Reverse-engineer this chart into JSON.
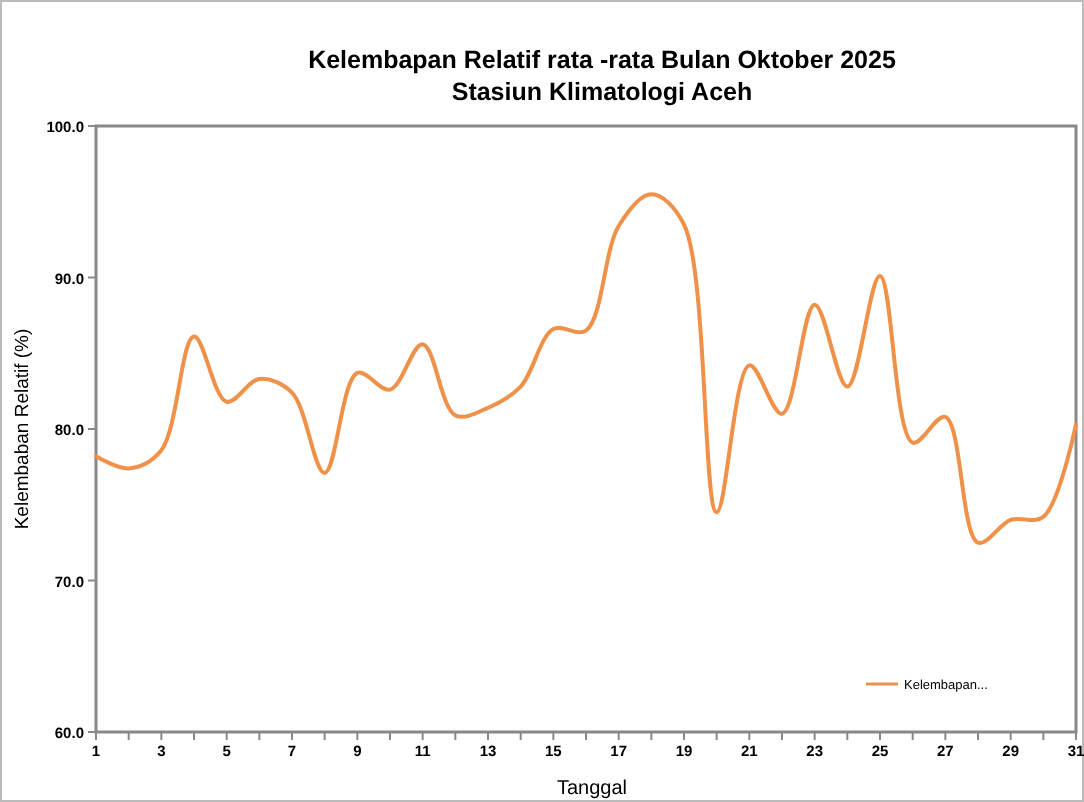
{
  "chart_data": {
    "type": "line",
    "title": "Kelembapan Relatif rata -rata Bulan Oktober 2025",
    "subtitle": "Stasiun Klimatologi Aceh",
    "xlabel": "Tanggal",
    "ylabel": "Kelembaban Relatif (%)",
    "x": [
      1,
      2,
      3,
      4,
      5,
      6,
      7,
      8,
      9,
      10,
      11,
      12,
      13,
      14,
      15,
      16,
      17,
      18,
      19,
      20,
      21,
      22,
      23,
      24,
      25,
      26,
      27,
      28,
      29,
      30,
      31
    ],
    "series": [
      {
        "name": "Kelembapan...",
        "color": "#f0914a",
        "values": [
          78.2,
          77.4,
          78.6,
          86.1,
          81.8,
          83.3,
          82.4,
          77.1,
          83.7,
          82.6,
          85.6,
          80.9,
          81.4,
          82.8,
          86.6,
          86.5,
          93.4,
          95.5,
          93.5,
          74.5,
          84.2,
          81.0,
          88.2,
          82.8,
          90.1,
          79.1,
          80.8,
          72.5,
          74.0,
          74.2,
          80.3
        ]
      }
    ],
    "xlim": [
      1,
      31
    ],
    "xticks": [
      1,
      {
        "value": 2,
        "label": null
      },
      3,
      {
        "value": 4,
        "label": null
      },
      5,
      {
        "value": 6,
        "label": null
      },
      7,
      {
        "value": 8,
        "label": null
      },
      9,
      {
        "value": 10,
        "label": null
      },
      11,
      {
        "value": 12,
        "label": null
      },
      13,
      {
        "value": 14,
        "label": null
      },
      15,
      {
        "value": 16,
        "label": null
      },
      17,
      {
        "value": 18,
        "label": null
      },
      19,
      {
        "value": 20,
        "label": null
      },
      21,
      {
        "value": 22,
        "label": null
      },
      23,
      {
        "value": 24,
        "label": null
      },
      25,
      {
        "value": 26,
        "label": null
      },
      27,
      {
        "value": 28,
        "label": null
      },
      29,
      {
        "value": 30,
        "label": null
      },
      31
    ],
    "ylim": [
      60,
      100
    ],
    "yticks": [
      {
        "value": 60,
        "label": "60.0"
      },
      {
        "value": 70,
        "label": "70.0"
      },
      {
        "value": 80,
        "label": "80.0"
      },
      {
        "value": 90,
        "label": "90.0"
      },
      {
        "value": 100,
        "label": "100.0"
      }
    ],
    "grid": false,
    "legend": "bottom right",
    "marker": "none",
    "line_style": "solid"
  }
}
